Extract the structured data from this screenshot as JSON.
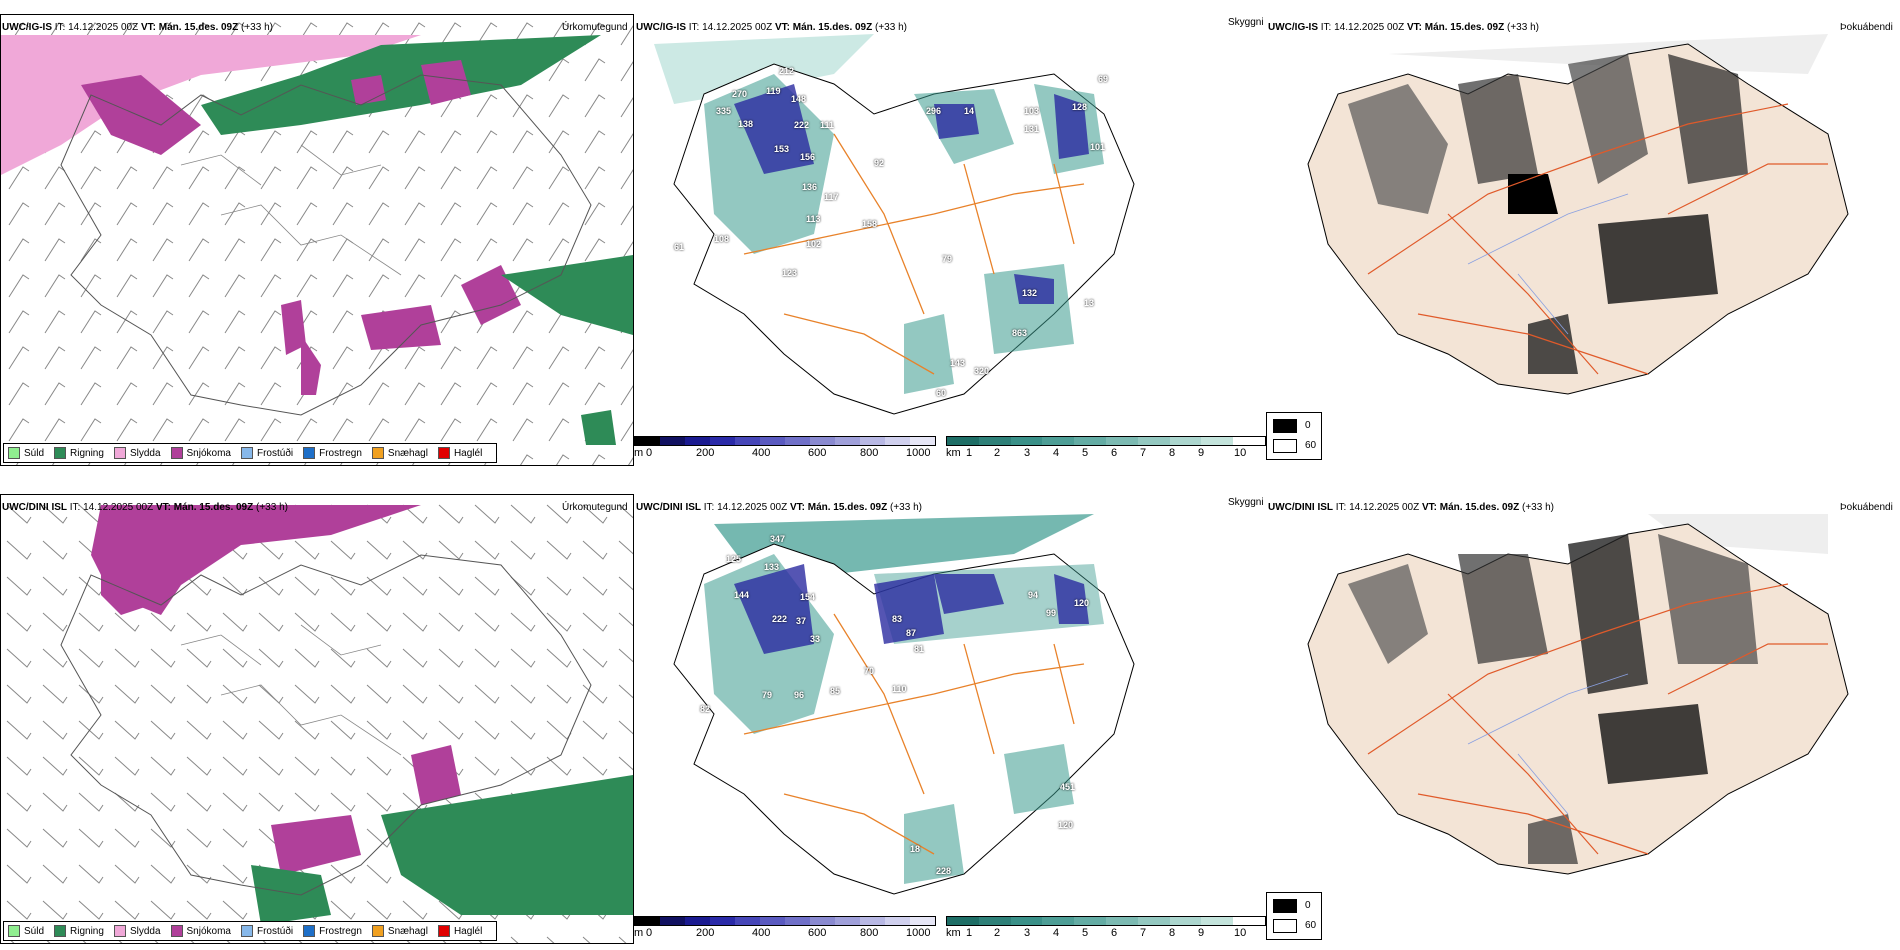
{
  "rows": [
    {
      "model": "UWC/IG-IS",
      "it_label": "IT:",
      "it_value": "14.12.2025 00Z",
      "vt_label": "VT:",
      "vt_value": "Mán. 15.des. 09Z",
      "lead": "(+33 h)",
      "precip_title": "Úrkomutegund",
      "vis_title": "Skyggni",
      "fog_title": "Þokuábendi",
      "labels": [
        "212",
        "119",
        "270",
        "148",
        "335",
        "138",
        "222",
        "111",
        "153",
        "156",
        "136",
        "117",
        "113",
        "158",
        "102",
        "61",
        "108",
        "296",
        "14",
        "103",
        "131",
        "128",
        "101",
        "69",
        "92",
        "79",
        "132",
        "13",
        "863",
        "143",
        "320",
        "60",
        "123"
      ]
    },
    {
      "model": "UWC/DINI ISL",
      "it_label": "IT:",
      "it_value": "14.12.2025 00Z",
      "vt_label": "VT:",
      "vt_value": "Mán. 15.des. 09Z",
      "lead": "(+33 h)",
      "precip_title": "Úrkomutegund",
      "vis_title": "Skyggni",
      "fog_title": "Þokuábendi",
      "labels": [
        "347",
        "125",
        "133",
        "144",
        "154",
        "222",
        "37",
        "33",
        "83",
        "87",
        "81",
        "70",
        "79",
        "96",
        "85",
        "110",
        "82",
        "94",
        "120",
        "99",
        "451",
        "120",
        "18",
        "228"
      ]
    }
  ],
  "precip_legend": [
    {
      "name": "Súld",
      "color": "#90ee90"
    },
    {
      "name": "Rigning",
      "color": "#2e8b57"
    },
    {
      "name": "Slydda",
      "color": "#f0a8d8"
    },
    {
      "name": "Snjókoma",
      "color": "#b0409a"
    },
    {
      "name": "Frostúði",
      "color": "#87b8ea"
    },
    {
      "name": "Frostregn",
      "color": "#1e6fc8"
    },
    {
      "name": "Snæhagl",
      "color": "#f0a020"
    },
    {
      "name": "Haglél",
      "color": "#e00000"
    }
  ],
  "vis_colorbar": {
    "unit_m": "m",
    "ticks_m": [
      "0",
      "200",
      "400",
      "600",
      "800",
      "1000"
    ],
    "unit_km": "km",
    "ticks_km": [
      "1",
      "2",
      "3",
      "4",
      "5",
      "6",
      "7",
      "8",
      "9",
      "10"
    ]
  },
  "fog_legend": {
    "dark_label": "0",
    "light_label": "60"
  },
  "colors": {
    "rain": "#2e8b57",
    "snow": "#b0409a",
    "sleet": "#f0a8d8",
    "teal": "#3a9a8e",
    "blue": "#2a2aa0",
    "road": "#e8822a",
    "land": "#f3e4d6",
    "red_road": "#e05a2a"
  }
}
